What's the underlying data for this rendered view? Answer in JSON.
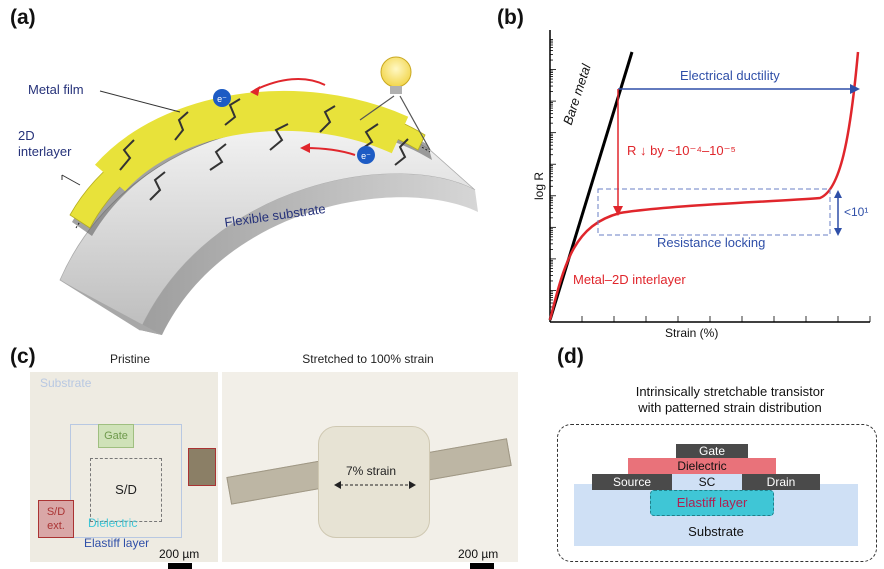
{
  "panels": {
    "a": {
      "label": "(a)",
      "metal_film": "Metal film",
      "interlayer_line1": "2D",
      "interlayer_line2": "interlayer",
      "substrate": "Flexible substrate",
      "electron": "e⁻",
      "icon": "lightbulb-icon"
    },
    "b": {
      "label": "(b)",
      "ylabel": "log R",
      "xlabel": "Strain (%)",
      "bare_metal": "Bare metal",
      "electrical_ductility": "Electrical ductility",
      "r_drop": "R ↓ by ~10⁻⁴–10⁻⁵",
      "resistance_locking": "Resistance locking",
      "ratio": "<10¹",
      "interlayer_curve": "Metal–2D interlayer"
    },
    "c": {
      "label": "(c)",
      "pristine_title": "Pristine",
      "stretched_title": "Stretched to 100% strain",
      "substrate": "Substrate",
      "gate": "Gate",
      "sd": "S/D",
      "sd_ext_line1": "S/D",
      "sd_ext_line2": "ext.",
      "dielectric": "Dielectric",
      "elastiff": "Elastiff layer",
      "strain_label": "7% strain",
      "scale_left": "200 µm",
      "scale_right": "200 µm"
    },
    "d": {
      "label": "(d)",
      "title_line1": "Intrinsically stretchable transistor",
      "title_line2": "with patterned strain distribution",
      "gate": "Gate",
      "dielectric": "Dielectric",
      "source": "Source",
      "sc": "SC",
      "drain": "Drain",
      "elastiff": "Elastiff layer",
      "substrate": "Substrate"
    }
  },
  "colors": {
    "metal_yellow": "#e8e23a",
    "red_curve": "#e0262c",
    "blue_annot": "#2f4fa8",
    "gate_dark": "#4a4a4a",
    "dielectric_red": "#e9727a",
    "elastiff_cyan": "#3fc6d6",
    "substrate_blue": "#cfe0f5"
  },
  "chart_data": {
    "type": "line",
    "xlabel": "Strain (%)",
    "ylabel": "log R",
    "series": [
      {
        "name": "Bare metal"
      },
      {
        "name": "Metal–2D interlayer"
      }
    ],
    "annotations": [
      "Electrical ductility",
      "R ↓ by ~10⁻⁴–10⁻⁵",
      "Resistance locking",
      "<10¹"
    ],
    "grid": false
  }
}
